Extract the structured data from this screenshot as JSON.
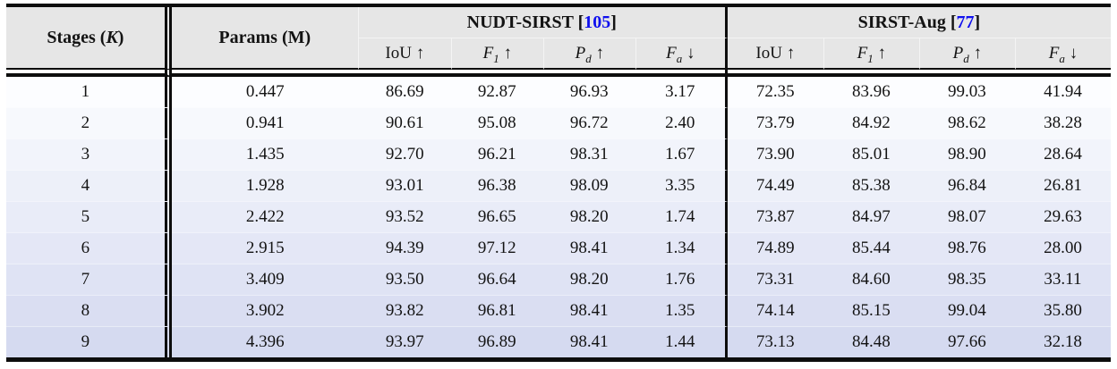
{
  "table": {
    "col_stages": {
      "prefix": "Stages (",
      "variable": "K",
      "suffix": ")"
    },
    "col_params": "Params (M)",
    "bracket_open": "[",
    "bracket_close": "]",
    "groups": [
      {
        "name": "NUDT-SIRST",
        "ref": "105"
      },
      {
        "name": "SIRST-Aug",
        "ref": "77"
      }
    ],
    "metrics": [
      {
        "symbol": "IoU",
        "sub": "",
        "arrow": "↑",
        "italic": false
      },
      {
        "symbol": "F",
        "sub": "1",
        "arrow": "↑",
        "italic": true
      },
      {
        "symbol": "P",
        "sub": "d",
        "arrow": "↑",
        "italic": true
      },
      {
        "symbol": "F",
        "sub": "a",
        "arrow": "↓",
        "italic": true
      }
    ],
    "rows": [
      {
        "stage": "1",
        "params": "0.447",
        "nudt": [
          "86.69",
          "92.87",
          "96.93",
          "3.17"
        ],
        "sirst": [
          "72.35",
          "83.96",
          "99.03",
          "41.94"
        ]
      },
      {
        "stage": "2",
        "params": "0.941",
        "nudt": [
          "90.61",
          "95.08",
          "96.72",
          "2.40"
        ],
        "sirst": [
          "73.79",
          "84.92",
          "98.62",
          "38.28"
        ]
      },
      {
        "stage": "3",
        "params": "1.435",
        "nudt": [
          "92.70",
          "96.21",
          "98.31",
          "1.67"
        ],
        "sirst": [
          "73.90",
          "85.01",
          "98.90",
          "28.64"
        ]
      },
      {
        "stage": "4",
        "params": "1.928",
        "nudt": [
          "93.01",
          "96.38",
          "98.09",
          "3.35"
        ],
        "sirst": [
          "74.49",
          "85.38",
          "96.84",
          "26.81"
        ]
      },
      {
        "stage": "5",
        "params": "2.422",
        "nudt": [
          "93.52",
          "96.65",
          "98.20",
          "1.74"
        ],
        "sirst": [
          "73.87",
          "84.97",
          "98.07",
          "29.63"
        ]
      },
      {
        "stage": "6",
        "params": "2.915",
        "nudt": [
          "94.39",
          "97.12",
          "98.41",
          "1.34"
        ],
        "sirst": [
          "74.89",
          "85.44",
          "98.76",
          "28.00"
        ]
      },
      {
        "stage": "7",
        "params": "3.409",
        "nudt": [
          "93.50",
          "96.64",
          "98.20",
          "1.76"
        ],
        "sirst": [
          "73.31",
          "84.60",
          "98.35",
          "33.11"
        ]
      },
      {
        "stage": "8",
        "params": "3.902",
        "nudt": [
          "93.82",
          "96.81",
          "98.41",
          "1.35"
        ],
        "sirst": [
          "74.14",
          "85.15",
          "99.04",
          "35.80"
        ]
      },
      {
        "stage": "9",
        "params": "4.396",
        "nudt": [
          "93.97",
          "96.89",
          "98.41",
          "1.44"
        ],
        "sirst": [
          "73.13",
          "84.48",
          "97.66",
          "32.18"
        ]
      }
    ]
  },
  "colors": {
    "citation_blue": "#0f0fee",
    "header_bg": "#e6e6e6",
    "row_gradient_top": "#fcfdff",
    "row_gradient_bottom": "#d5daf0",
    "rule_black": "#0d0d0d"
  }
}
